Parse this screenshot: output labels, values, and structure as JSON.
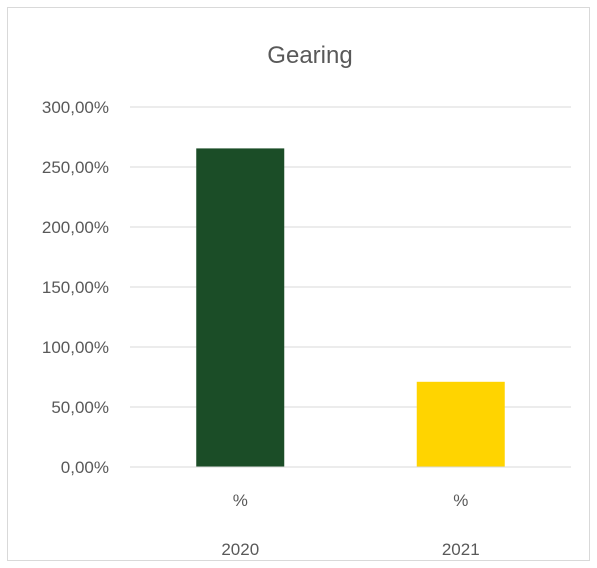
{
  "chart_data": {
    "type": "bar",
    "title": "Gearing",
    "xlabel": "",
    "ylabel": "",
    "ylim": [
      0,
      300
    ],
    "yticks": [
      "0,00%",
      "50,00%",
      "100,00%",
      "150,00%",
      "200,00%",
      "250,00%",
      "300,00%"
    ],
    "ytick_values": [
      0,
      50,
      100,
      150,
      200,
      250,
      300
    ],
    "categories": [
      {
        "label": "%",
        "group": "2020"
      },
      {
        "label": "%",
        "group": "2021"
      }
    ],
    "values": [
      265.5,
      71.0
    ],
    "bar_colors": [
      "#1b4d27",
      "#ffd400"
    ],
    "grid": true,
    "gridline_color": "#d9d9d9",
    "legend": "none"
  }
}
